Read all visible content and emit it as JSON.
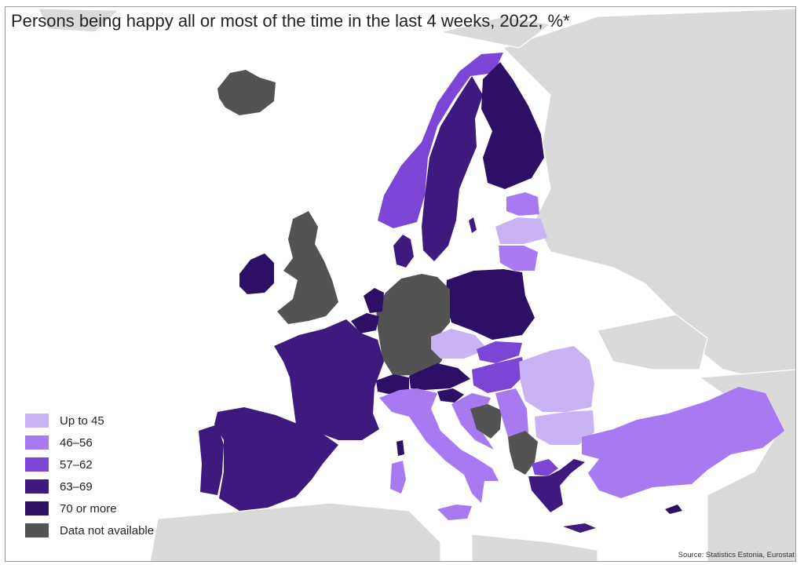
{
  "title": "Persons being happy all or most of the time in the last 4 weeks, 2022, %*",
  "source": "Source: Statistics Estonia, Eurostat",
  "colors": {
    "water": "#ffffff",
    "non_eu_land": "#dadada",
    "up_to_45": "#c9b3f5",
    "46_56": "#a87af2",
    "57_62": "#7b45d6",
    "63_69": "#3e1a7f",
    "70_or_more": "#2e0f66",
    "na": "#535353"
  },
  "legend": [
    {
      "label": "Up to 45",
      "color": "#c9b3f5"
    },
    {
      "label": "46–56",
      "color": "#a87af2"
    },
    {
      "label": "57–62",
      "color": "#7b45d6"
    },
    {
      "label": "63–69",
      "color": "#3e1a7f"
    },
    {
      "label": "70 or more",
      "color": "#2e0f66"
    },
    {
      "label": "Data not available",
      "color": "#535353"
    }
  ]
}
